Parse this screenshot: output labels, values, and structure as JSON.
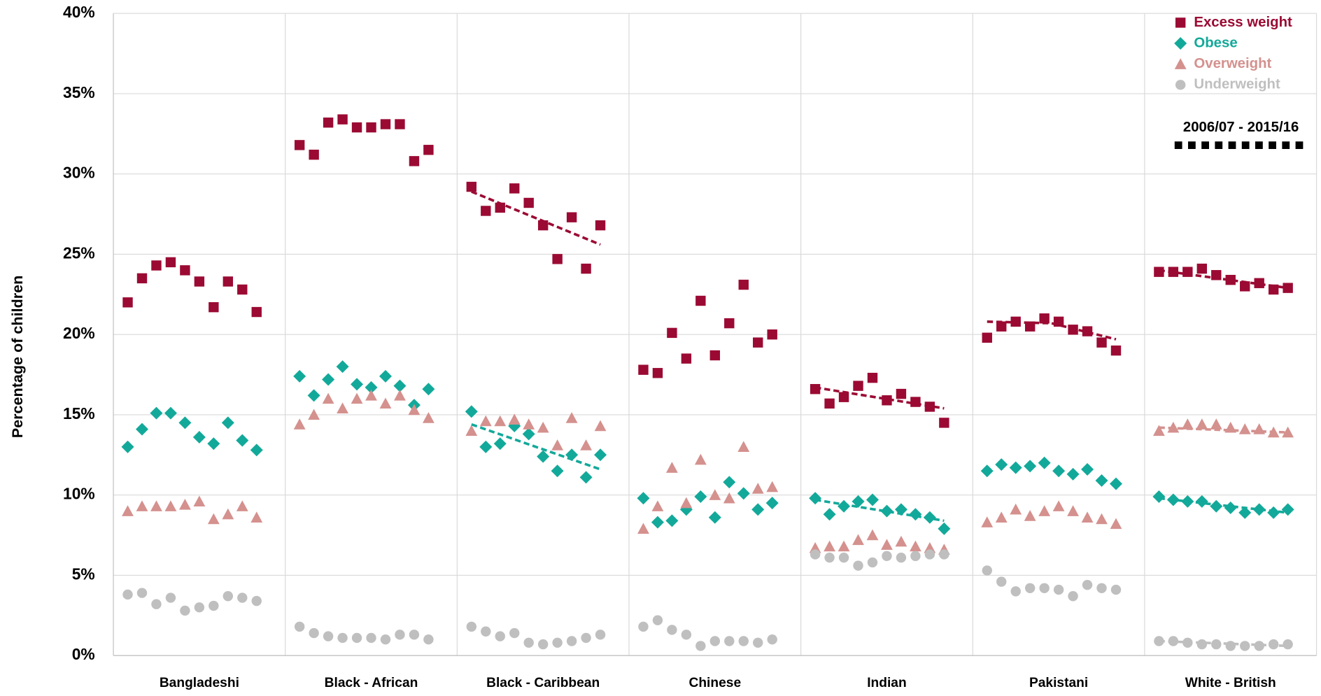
{
  "chart_data": {
    "type": "scatter",
    "y_label": "Percentage of children",
    "categories": [
      "Bangladeshi",
      "Black - African",
      "Black - Caribbean",
      "Chinese",
      "Indian",
      "Pakistani",
      "White - British"
    ],
    "period": "2006/07 - 2015/16",
    "ylim": [
      0,
      40
    ],
    "yticks": [
      {
        "value": 0,
        "label": "0%"
      },
      {
        "value": 5,
        "label": "5%"
      },
      {
        "value": 10,
        "label": "10%"
      },
      {
        "value": 15,
        "label": "15%"
      },
      {
        "value": 20,
        "label": "20%"
      },
      {
        "value": 25,
        "label": "25%"
      },
      {
        "value": 30,
        "label": "30%"
      },
      {
        "value": 35,
        "label": "35%"
      },
      {
        "value": 40,
        "label": "40%"
      }
    ],
    "grid": true,
    "legend": "top-right",
    "series": [
      {
        "name": "Excess weight",
        "color": "#9b0a33",
        "marker": "square",
        "values": [
          [
            22.0,
            23.5,
            24.3,
            24.5,
            24.0,
            23.3,
            21.7,
            23.3,
            22.8,
            21.4
          ],
          [
            31.8,
            31.2,
            33.2,
            33.4,
            32.9,
            32.9,
            33.1,
            33.1,
            30.8,
            31.5
          ],
          [
            29.2,
            27.7,
            27.9,
            29.1,
            28.2,
            26.8,
            24.7,
            27.3,
            24.1,
            26.8
          ],
          [
            17.8,
            17.6,
            20.1,
            18.5,
            22.1,
            18.7,
            20.7,
            23.1,
            19.5,
            20.0
          ],
          [
            16.6,
            15.7,
            16.1,
            16.8,
            17.3,
            15.9,
            16.3,
            15.8,
            15.5,
            14.5
          ],
          [
            19.8,
            20.5,
            20.8,
            20.5,
            21.0,
            20.8,
            20.3,
            20.2,
            19.5,
            19.0
          ],
          [
            23.9,
            23.9,
            23.9,
            24.1,
            23.7,
            23.4,
            23.0,
            23.2,
            22.8,
            22.9
          ]
        ],
        "trend": [
          null,
          null,
          [
            28.9,
            25.6
          ],
          null,
          [
            16.7,
            15.4
          ],
          [
            20.8,
            20.7,
            19.7
          ],
          [
            24.0,
            22.9
          ]
        ]
      },
      {
        "name": "Obese",
        "color": "#13a99a",
        "marker": "diamond",
        "values": [
          [
            13.0,
            14.1,
            15.1,
            15.1,
            14.5,
            13.6,
            13.2,
            14.5,
            13.4,
            12.8
          ],
          [
            17.4,
            16.2,
            17.2,
            18.0,
            16.9,
            16.7,
            17.4,
            16.8,
            15.6,
            16.6
          ],
          [
            15.2,
            13.0,
            13.2,
            14.3,
            13.8,
            12.4,
            11.5,
            12.5,
            11.1,
            12.5
          ],
          [
            9.8,
            8.3,
            8.4,
            9.1,
            9.9,
            8.6,
            10.8,
            10.1,
            9.1,
            9.5
          ],
          [
            9.8,
            8.8,
            9.3,
            9.6,
            9.7,
            9.0,
            9.1,
            8.8,
            8.6,
            7.9
          ],
          [
            11.5,
            11.9,
            11.7,
            11.8,
            12.0,
            11.5,
            11.3,
            11.6,
            10.9,
            10.7
          ],
          [
            9.9,
            9.7,
            9.6,
            9.6,
            9.3,
            9.2,
            8.9,
            9.1,
            8.9,
            9.1
          ]
        ],
        "trend": [
          null,
          null,
          [
            14.4,
            11.6
          ],
          null,
          [
            9.7,
            8.4
          ],
          null,
          [
            9.8,
            8.9
          ]
        ]
      },
      {
        "name": "Overweight",
        "color": "#d4918e",
        "marker": "triangle",
        "values": [
          [
            9.0,
            9.3,
            9.3,
            9.3,
            9.4,
            9.6,
            8.5,
            8.8,
            9.3,
            8.6
          ],
          [
            14.4,
            15.0,
            16.0,
            15.4,
            16.0,
            16.2,
            15.7,
            16.2,
            15.3,
            14.8
          ],
          [
            14.0,
            14.6,
            14.6,
            14.7,
            14.4,
            14.2,
            13.1,
            14.8,
            13.1,
            14.3
          ],
          [
            7.9,
            9.3,
            11.7,
            9.5,
            12.2,
            10.0,
            9.8,
            13.0,
            10.4,
            10.5
          ],
          [
            6.7,
            6.8,
            6.8,
            7.2,
            7.5,
            6.9,
            7.1,
            6.8,
            6.7,
            6.6
          ],
          [
            8.3,
            8.6,
            9.1,
            8.7,
            9.0,
            9.3,
            9.0,
            8.6,
            8.5,
            8.2
          ],
          [
            14.0,
            14.2,
            14.4,
            14.4,
            14.4,
            14.2,
            14.1,
            14.1,
            13.9,
            13.9
          ]
        ],
        "trend": [
          null,
          null,
          null,
          null,
          null,
          null,
          [
            14.2,
            13.9
          ]
        ]
      },
      {
        "name": "Underweight",
        "color": "#bfbfbf",
        "marker": "circle",
        "values": [
          [
            3.8,
            3.9,
            3.2,
            3.6,
            2.8,
            3.0,
            3.1,
            3.7,
            3.6,
            3.4
          ],
          [
            1.8,
            1.4,
            1.2,
            1.1,
            1.1,
            1.1,
            1.0,
            1.3,
            1.3,
            1.0
          ],
          [
            1.8,
            1.5,
            1.2,
            1.4,
            0.8,
            0.7,
            0.8,
            0.9,
            1.1,
            1.3
          ],
          [
            1.8,
            2.2,
            1.6,
            1.3,
            0.6,
            0.9,
            0.9,
            0.9,
            0.8,
            1.0
          ],
          [
            6.3,
            6.1,
            6.1,
            5.6,
            5.8,
            6.2,
            6.1,
            6.2,
            6.3,
            6.3
          ],
          [
            5.3,
            4.6,
            4.0,
            4.2,
            4.2,
            4.1,
            3.7,
            4.4,
            4.2,
            4.1
          ],
          [
            0.9,
            0.9,
            0.8,
            0.7,
            0.7,
            0.6,
            0.6,
            0.6,
            0.7,
            0.7
          ]
        ],
        "trend": [
          null,
          null,
          null,
          null,
          null,
          null,
          [
            0.9,
            0.6
          ]
        ]
      }
    ]
  }
}
